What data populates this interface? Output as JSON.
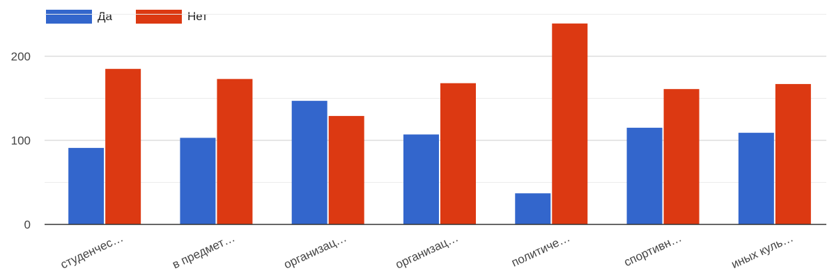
{
  "chart_data": {
    "type": "bar",
    "categories": [
      "студенчес…",
      "в предмет…",
      "организац…",
      "организац…",
      "политиче…",
      "спортивн…",
      "иных куль…"
    ],
    "series": [
      {
        "name": "Да",
        "color": "#3366cc",
        "values": [
          91,
          103,
          147,
          107,
          37,
          115,
          109
        ]
      },
      {
        "name": "Нет",
        "color": "#dc3912",
        "values": [
          185,
          173,
          129,
          168,
          239,
          161,
          167
        ]
      }
    ],
    "y_ticks": [
      0,
      100,
      200
    ],
    "ylim": [
      0,
      250
    ],
    "grid": true,
    "legend_position": "top-left"
  }
}
